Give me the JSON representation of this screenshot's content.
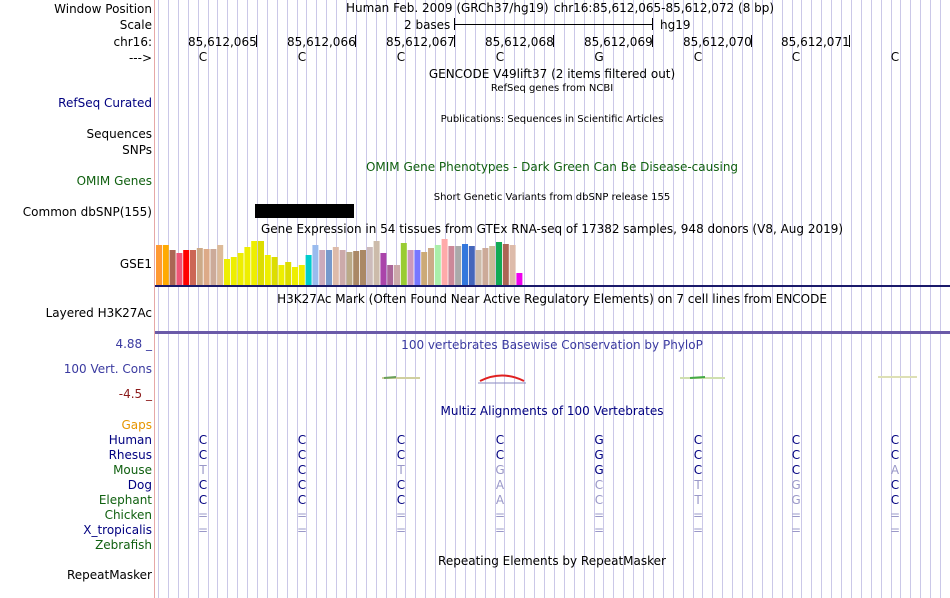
{
  "header": {
    "window_position_label": "Window Position",
    "scale_label": "Scale",
    "chr_label": "chr16:",
    "arrow_label": "--->",
    "assembly_text": "Human Feb. 2009 (GRCh37/hg19)",
    "position_text": "chr16:85,612,065-85,612,072 (8 bp)",
    "scale_text": "2 bases",
    "db_text": "hg19"
  },
  "ruler": {
    "ticks": [
      "85,612,065",
      "85,612,066",
      "85,612,067",
      "85,612,068",
      "85,612,069",
      "85,612,070",
      "85,612,071"
    ]
  },
  "reference_bases": [
    "C",
    "C",
    "C",
    "C",
    "G",
    "C",
    "C",
    "C"
  ],
  "tracks": {
    "gencode_title": "GENCODE V49lift37 (2 items filtered out)",
    "refseq_label": "RefSeq Curated",
    "refseq_title": "RefSeq genes from NCBI",
    "sequences_label": "Sequences",
    "publications_title": "Publications: Sequences in Scientific Articles",
    "snps_label": "SNPs",
    "omim_title": "OMIM Gene Phenotypes - Dark Green Can Be Disease-causing",
    "omim_label": "OMIM Genes",
    "dbsnp_title": "Short Genetic Variants from dbSNP release 155",
    "dbsnp_label": "Common dbSNP(155)",
    "gtex_title": "Gene Expression in 54 tissues from GTEx RNA-seq of 17382 samples, 948 donors (V8, Aug 2019)",
    "gse1_label": "GSE1",
    "h3k27ac_title": "H3K27Ac Mark (Often Found Near Active Regulatory Elements) on 7 cell lines from ENCODE",
    "h3k27ac_label": "Layered H3K27Ac",
    "cons_max": "4.88 _",
    "cons_title": "100 vertebrates Basewise Conservation by PhyloP",
    "cons_label": "100 Vert. Cons",
    "cons_min": "-4.5 _",
    "multiz_title": "Multiz Alignments of 100 Vertebrates",
    "gaps_label": "Gaps",
    "repeat_title": "Repeating Elements by RepeatMasker",
    "repeat_label": "RepeatMasker"
  },
  "gtex": {
    "values": [
      40,
      40,
      35,
      32,
      35,
      35,
      37,
      36,
      36,
      40,
      26,
      28,
      32,
      38,
      44,
      44,
      30,
      28,
      20,
      23,
      18,
      20,
      30,
      40,
      35,
      35,
      38,
      35,
      33,
      34,
      35,
      38,
      44,
      32,
      20,
      20,
      42,
      35,
      35,
      33,
      37,
      40,
      46,
      39,
      39,
      41,
      39,
      35,
      37,
      39,
      43,
      41,
      40,
      12
    ],
    "colors": [
      "#ff9933",
      "#ffaa00",
      "#aa6655",
      "#ee5577",
      "#ff0000",
      "#cc6655",
      "#ccaa88",
      "#ddaa88",
      "#ccaa99",
      "#ddbb99",
      "#eeee00",
      "#eeee00",
      "#eeee00",
      "#eeee00",
      "#eeee00",
      "#dddd00",
      "#eeee00",
      "#dddd00",
      "#eeee00",
      "#dddd00",
      "#eeee00",
      "#eeee00",
      "#00cccc",
      "#99bbee",
      "#ccaabb",
      "#7799cc",
      "#ddbbaa",
      "#ccaaaa",
      "#bbaa88",
      "#aa8866",
      "#aa8866",
      "#ccbbbb",
      "#ccbbaa",
      "#aa44aa",
      "#aa6699",
      "#ccaaaa",
      "#99cc33",
      "#cc99bb",
      "#7777ff",
      "#ccaa77",
      "#ccaa88",
      "#aaeeaa",
      "#ffaaaa",
      "#cc8899",
      "#aaaaaa",
      "#3377dd",
      "#4466bb",
      "#ccbbaa",
      "#ccaa99",
      "#ccbb99",
      "#11aa55",
      "#aa6655",
      "#ddbbaa",
      "#ee00ee"
    ]
  },
  "multiz": {
    "species": [
      {
        "name": "Human",
        "color": "#000080",
        "bases": [
          "C",
          "C",
          "C",
          "C",
          "G",
          "C",
          "C",
          "C"
        ],
        "dim": [
          false,
          false,
          false,
          false,
          false,
          false,
          false,
          false
        ]
      },
      {
        "name": "Rhesus",
        "color": "#000080",
        "bases": [
          "C",
          "C",
          "C",
          "C",
          "G",
          "C",
          "C",
          "C"
        ],
        "dim": [
          false,
          false,
          false,
          false,
          false,
          false,
          false,
          false
        ]
      },
      {
        "name": "Mouse",
        "color": "#106010",
        "bases": [
          "T",
          "C",
          "T",
          "G",
          "G",
          "C",
          "C",
          "A"
        ],
        "dim": [
          true,
          false,
          true,
          true,
          false,
          false,
          false,
          true
        ]
      },
      {
        "name": "Dog",
        "color": "#000080",
        "bases": [
          "C",
          "C",
          "C",
          "A",
          "C",
          "T",
          "G",
          "C"
        ],
        "dim": [
          false,
          false,
          false,
          true,
          true,
          true,
          true,
          false
        ]
      },
      {
        "name": "Elephant",
        "color": "#106010",
        "bases": [
          "C",
          "C",
          "C",
          "A",
          "C",
          "T",
          "G",
          "C"
        ],
        "dim": [
          false,
          false,
          false,
          true,
          true,
          true,
          true,
          false
        ]
      },
      {
        "name": "Chicken",
        "color": "#106010",
        "bases": [
          "=",
          "=",
          "=",
          "=",
          "=",
          "=",
          "=",
          "="
        ],
        "dim": [
          true,
          true,
          true,
          true,
          true,
          true,
          true,
          true
        ]
      },
      {
        "name": "X_tropicalis",
        "color": "#000080",
        "bases": [
          "=",
          "=",
          "=",
          "=",
          "=",
          "=",
          "=",
          "="
        ],
        "dim": [
          true,
          true,
          true,
          true,
          true,
          true,
          true,
          true
        ]
      },
      {
        "name": "Zebrafish",
        "color": "#106010",
        "bases": [],
        "dim": []
      }
    ]
  },
  "colors": {
    "label_navy": "#000080",
    "label_green": "#106010",
    "gaps_orange": "#e69500",
    "cons_blue": "#3a3aa0",
    "cons_min_red": "#8b1a1a",
    "dim_base": "#9a98c8",
    "h3k_line": "#3a2a80"
  }
}
